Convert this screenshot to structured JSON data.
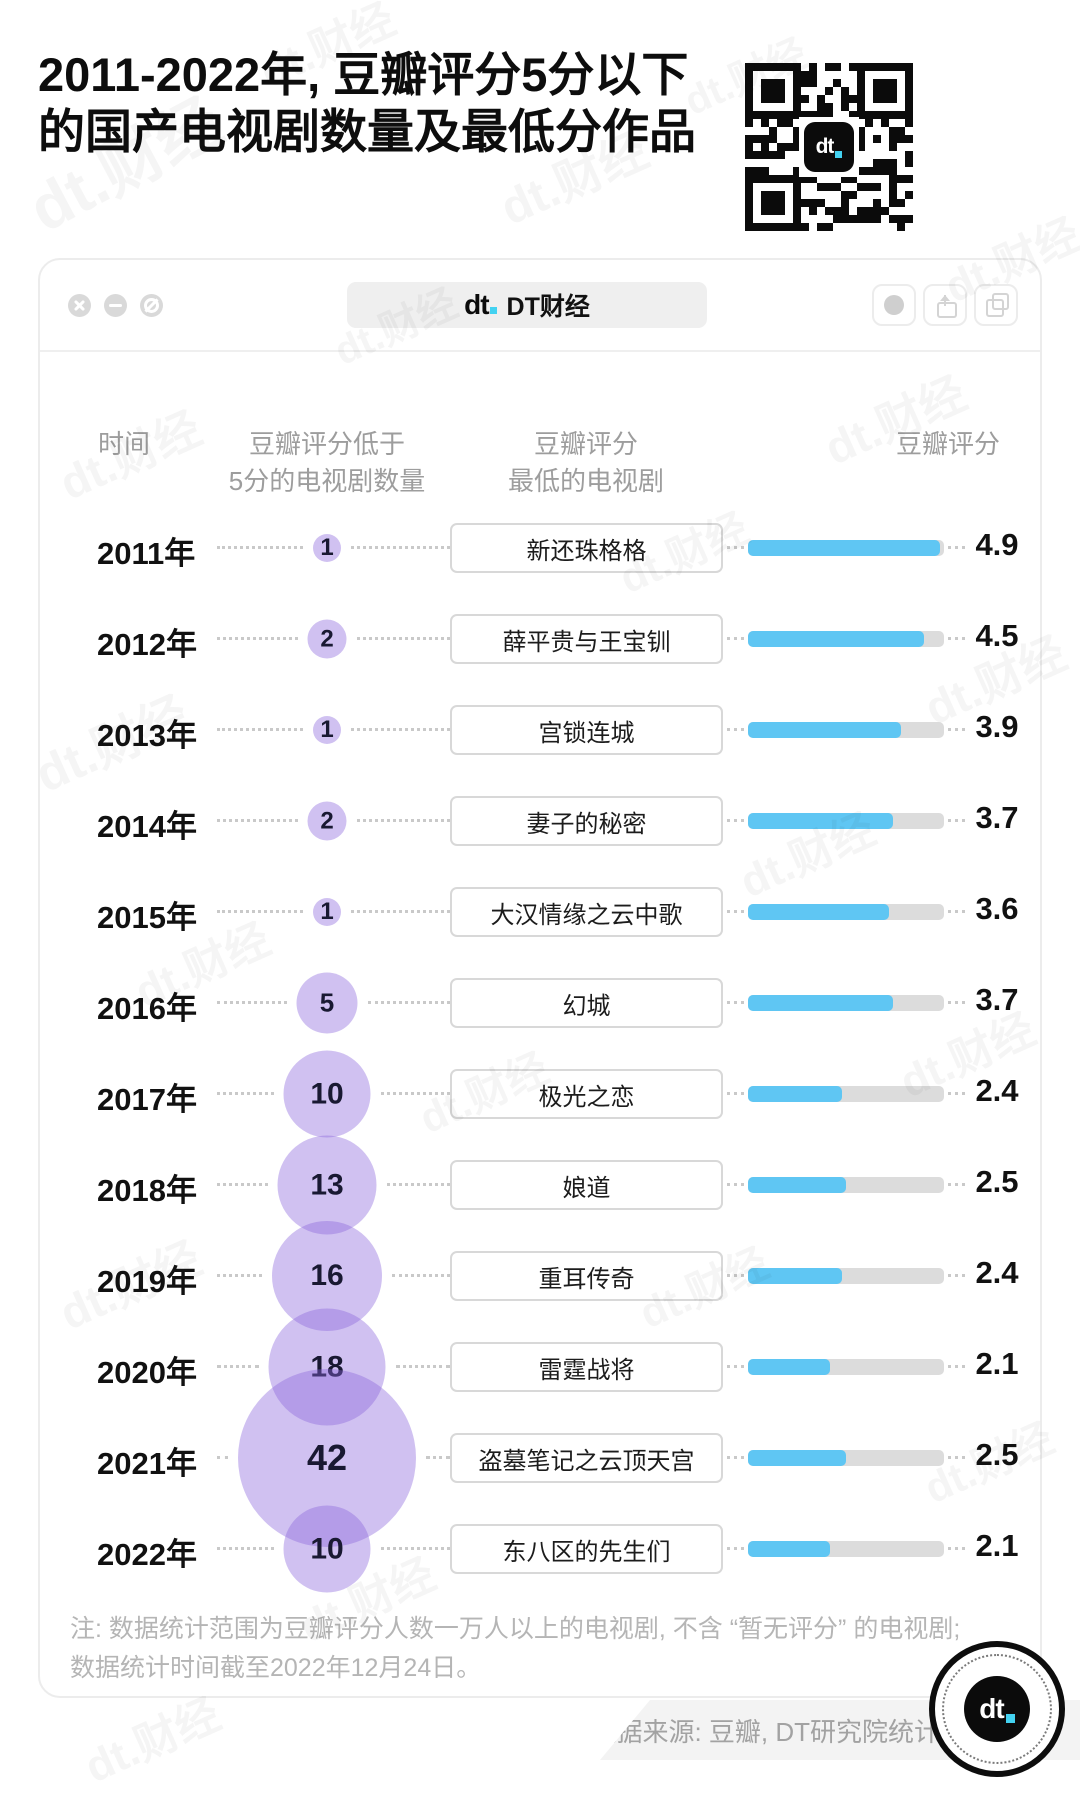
{
  "page": {
    "title_line1": "2011-2022年, 豆瓣评分5分以下",
    "title_line2": "的国产电视剧数量及最低分作品",
    "watermark": "dt.财经",
    "qr_logo": "dt"
  },
  "window": {
    "tab_logo": "dt",
    "tab_title": "DT财经",
    "controls": [
      "close",
      "minimize",
      "block"
    ],
    "action_icons": [
      "record-circle",
      "share",
      "copy"
    ]
  },
  "table": {
    "headers": {
      "time": "时间",
      "count_line1": "豆瓣评分低于",
      "count_line2": "5分的电视剧数量",
      "drama_line1": "豆瓣评分",
      "drama_line2": "最低的电视剧",
      "score": "豆瓣评分"
    }
  },
  "chart_data": {
    "type": "bar",
    "title": "2011-2022年, 豆瓣评分5分以下的国产电视剧数量及最低分作品",
    "categories": [
      "2011年",
      "2012年",
      "2013年",
      "2014年",
      "2015年",
      "2016年",
      "2017年",
      "2018年",
      "2019年",
      "2020年",
      "2021年",
      "2022年"
    ],
    "series": [
      {
        "name": "豆瓣评分低于5分的电视剧数量",
        "type": "bubble",
        "values": [
          1,
          2,
          1,
          2,
          1,
          5,
          10,
          13,
          16,
          18,
          42,
          10
        ]
      },
      {
        "name": "豆瓣评分最低的电视剧",
        "type": "label",
        "values": [
          "新还珠格格",
          "薛平贵与王宝钏",
          "宫锁连城",
          "妻子的秘密",
          "大汉情缘之云中歌",
          "幻城",
          "极光之恋",
          "娘道",
          "重耳传奇",
          "雷霆战将",
          "盗墓笔记之云顶天宫",
          "东八区的先生们"
        ]
      },
      {
        "name": "豆瓣评分",
        "type": "bar",
        "values": [
          4.9,
          4.5,
          3.9,
          3.7,
          3.6,
          3.7,
          2.4,
          2.5,
          2.4,
          2.1,
          2.5,
          2.1
        ]
      }
    ],
    "score_axis_max": 5,
    "legend_position": "none",
    "grid": false
  },
  "footer": {
    "note_line1": "注: 数据统计范围为豆瓣评分人数一万人以上的电视剧, 不含 “暂无评分” 的电视剧;",
    "note_line2": "数据统计时间截至2022年12月24日。",
    "source": "数据来源: 豆瓣, DT研究院统计",
    "logo": "dt"
  },
  "colors": {
    "bar_fill": "#5fc6f3",
    "bar_track": "#dcdcdc",
    "bubble_fill": "rgba(138,99,221,0.40)",
    "accent_cyan": "#43d2f1",
    "text_dark": "#111111",
    "text_gray": "#9d9d9d"
  }
}
